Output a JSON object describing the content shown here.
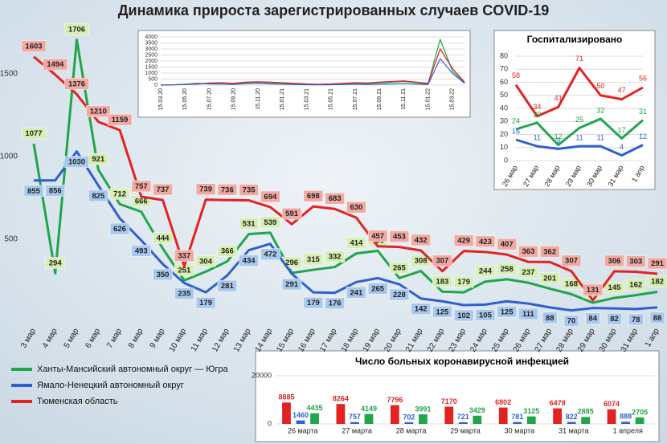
{
  "chart_data": [
    {
      "type": "line",
      "title": "Динамика прироста зарегистрированных случаев COVID-19",
      "categories": [
        "3 мар",
        "4 мар",
        "5 мар",
        "6 мар",
        "7 мар",
        "8 мар",
        "9 мар",
        "10 мар",
        "11 мар",
        "12 мар",
        "13 мар",
        "14 мар",
        "15 мар",
        "16 мар",
        "17 мар",
        "18 мар",
        "19 мар",
        "20 мар",
        "21 мар",
        "22 мар",
        "23 мар",
        "24 мар",
        "25 мар",
        "26 мар",
        "27 мар",
        "28 мар",
        "29 мар",
        "30 мар",
        "31 мар",
        "1 апр"
      ],
      "series": [
        {
          "name": "Ханты-Мансийский автономный округ — Югра",
          "color": "#1fa64a",
          "values": [
            1077,
            294,
            1706,
            921,
            712,
            666,
            444,
            251,
            304,
            366,
            531,
            539,
            296,
            315,
            332,
            414,
            430,
            265,
            308,
            183,
            179,
            244,
            258,
            237,
            201,
            168,
            116,
            145,
            162,
            182
          ]
        },
        {
          "name": "Ямало-Ненецкий автономный округ",
          "color": "#2f5fd0",
          "values": [
            855,
            856,
            1030,
            825,
            626,
            493,
            350,
            235,
            179,
            281,
            434,
            472,
            291,
            179,
            176,
            241,
            265,
            228,
            142,
            125,
            102,
            105,
            125,
            111,
            88,
            70,
            84,
            82,
            78,
            88
          ]
        },
        {
          "name": "Тюменская область",
          "color": "#e32222",
          "values": [
            1603,
            1494,
            1376,
            1210,
            1159,
            757,
            737,
            337,
            739,
            736,
            735,
            694,
            591,
            698,
            683,
            630,
            457,
            453,
            432,
            307,
            429,
            423,
            407,
            363,
            362,
            307,
            131,
            306,
            303,
            291
          ]
        }
      ],
      "ylim": [
        0,
        1800
      ],
      "yticks": [
        500,
        1000,
        1500
      ],
      "grid": false,
      "data_labels": true,
      "legend": "lower left"
    },
    {
      "type": "line",
      "categories": [
        "15.03.20",
        null,
        "15.05.20",
        null,
        "15.07.20",
        null,
        "15.09.20",
        null,
        "15.11.20",
        null,
        "15.01.21",
        null,
        "15.03.21",
        null,
        "15.05.21",
        null,
        "15.07.21",
        null,
        "15.09.21",
        null,
        "15.11.21",
        null,
        "15.01.22",
        null,
        "15.03.22",
        null
      ],
      "series": [
        {
          "color": "#1fa64a",
          "values": [
            0,
            20,
            50,
            80,
            150,
            180,
            120,
            200,
            250,
            200,
            150,
            100,
            60,
            40,
            50,
            80,
            150,
            120,
            180,
            250,
            300,
            200,
            100,
            3800,
            1200,
            200
          ]
        },
        {
          "color": "#e32222",
          "values": [
            0,
            30,
            70,
            100,
            180,
            200,
            150,
            250,
            280,
            250,
            200,
            150,
            100,
            80,
            100,
            150,
            200,
            180,
            250,
            300,
            350,
            250,
            150,
            3000,
            1400,
            250
          ]
        },
        {
          "color": "#2f5fd0",
          "values": [
            0,
            20,
            80,
            150,
            100,
            80,
            60,
            120,
            150,
            100,
            80,
            50,
            30,
            20,
            30,
            50,
            80,
            60,
            80,
            100,
            120,
            80,
            50,
            2200,
            1000,
            150
          ]
        }
      ],
      "ylim": [
        0,
        4000
      ],
      "yticks": [
        0,
        500,
        1000,
        1500,
        2000,
        2500,
        3000,
        3500,
        4000
      ],
      "grid": true,
      "data_labels": false
    },
    {
      "type": "line",
      "title": "Госпитализировано",
      "categories": [
        "26 мар",
        "27 мар",
        "28 мар",
        "29 мар",
        "30 мар",
        "31 мар",
        "1 апр"
      ],
      "series": [
        {
          "color": "#e32222",
          "values": [
            58,
            34,
            41,
            71,
            50,
            47,
            56
          ]
        },
        {
          "color": "#1fa64a",
          "values": [
            24,
            29,
            12,
            25,
            32,
            17,
            31
          ]
        },
        {
          "color": "#2f5fd0",
          "values": [
            16,
            11,
            9,
            11,
            11,
            4,
            12
          ]
        }
      ],
      "ylim": [
        0,
        80
      ],
      "yticks": [
        0,
        10,
        20,
        30,
        40,
        50,
        60,
        70,
        80
      ],
      "grid": true,
      "data_labels": true
    },
    {
      "type": "bar",
      "title": "Число больных  коронавирусной  инфекцией",
      "categories": [
        "26 марта",
        "27 марта",
        "28 марта",
        "29 марта",
        "30 марта",
        "31 марта",
        "1 апреля"
      ],
      "series": [
        {
          "color": "#e32222",
          "values": [
            8885,
            8264,
            7796,
            7170,
            6802,
            6478,
            6074
          ]
        },
        {
          "color": "#2f5fd0",
          "values": [
            1460,
            757,
            702,
            721,
            781,
            822,
            888
          ]
        },
        {
          "color": "#1fa64a",
          "values": [
            4435,
            4149,
            3991,
            3429,
            3125,
            2885,
            2705
          ]
        }
      ],
      "ylim": [
        0,
        20000
      ],
      "yticks": [
        0,
        20000
      ],
      "grid": true,
      "data_labels": true
    }
  ]
}
